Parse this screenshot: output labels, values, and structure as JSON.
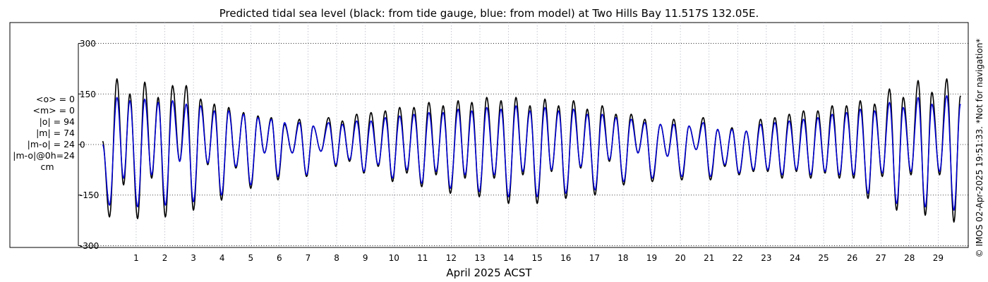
{
  "title": "Predicted tidal sea level (black: from tide gauge, blue: from model) at Two Hills Bay 11.517S 132.05E.",
  "stats_lines": [
    "<o> = 0",
    "<m> = 0",
    "|o| = 94",
    "|m| = 74",
    "|m-o| = 24",
    "|m-o|@0h=24"
  ],
  "stats_unit": "cm",
  "credit": "© IMOS 02-Apr-2025 19:51:33. *Not for navigation*",
  "chart_data": {
    "type": "line",
    "title": "Predicted tidal sea level (black: from tide gauge, blue: from model) at Two Hills Bay 11.517S 132.05E.",
    "xlabel": "April 2025 ACST",
    "ylabel": "",
    "x_unit": "day of April 2025",
    "xlim": [
      -0.6,
      30
    ],
    "ylim": [
      -320,
      320
    ],
    "yticks": [
      -300,
      -150,
      0,
      150,
      300
    ],
    "xticks": [
      1,
      2,
      3,
      4,
      5,
      6,
      7,
      8,
      9,
      10,
      11,
      12,
      13,
      14,
      15,
      16,
      17,
      18,
      19,
      20,
      21,
      22,
      23,
      24,
      25,
      26,
      27,
      28,
      29
    ],
    "grid": true,
    "legend": "none",
    "series": [
      {
        "color": "#000000",
        "high_tide_days": [
          -0.17,
          0.33,
          0.78,
          1.3,
          1.77,
          2.27,
          2.75,
          3.25,
          3.73,
          4.23,
          4.75,
          5.25,
          5.72,
          6.18,
          6.7,
          7.18,
          7.72,
          8.2,
          8.7,
          9.2,
          9.7,
          10.2,
          10.7,
          11.22,
          11.72,
          12.24,
          12.72,
          13.24,
          13.74,
          14.26,
          14.75,
          15.27,
          15.75,
          16.27,
          16.75,
          17.27,
          17.75,
          18.28,
          18.76,
          19.3,
          19.77,
          20.3,
          20.8,
          21.3,
          21.8,
          22.3,
          22.8,
          23.3,
          23.8,
          24.3,
          24.8,
          25.3,
          25.8,
          26.28,
          26.78,
          27.3,
          27.78,
          28.3,
          28.78,
          29.3,
          29.78
        ],
        "high_tide_values": [
          10,
          195,
          150,
          185,
          140,
          175,
          175,
          135,
          120,
          110,
          95,
          85,
          80,
          60,
          75,
          55,
          80,
          70,
          90,
          95,
          100,
          110,
          110,
          125,
          115,
          130,
          125,
          140,
          130,
          140,
          115,
          135,
          115,
          130,
          105,
          115,
          90,
          90,
          75,
          60,
          75,
          55,
          80,
          45,
          50,
          40,
          75,
          80,
          90,
          100,
          100,
          115,
          115,
          130,
          120,
          165,
          140,
          190,
          155,
          195,
          145
        ],
        "low_tide_days": [
          0.07,
          0.56,
          1.05,
          1.54,
          2.02,
          2.52,
          3.0,
          3.5,
          3.98,
          4.48,
          5.0,
          5.48,
          5.95,
          6.45,
          6.95,
          7.45,
          7.97,
          8.45,
          8.95,
          9.45,
          9.95,
          10.45,
          10.97,
          11.47,
          11.97,
          12.48,
          12.98,
          13.5,
          14.0,
          14.5,
          15.0,
          15.5,
          16.0,
          16.52,
          17.02,
          17.52,
          18.02,
          18.52,
          19.02,
          19.55,
          20.05,
          20.55,
          21.05,
          21.55,
          22.05,
          22.55,
          23.05,
          23.55,
          24.05,
          24.55,
          25.05,
          25.55,
          26.05,
          26.55,
          27.05,
          27.55,
          28.05,
          28.55,
          29.05,
          29.55
        ],
        "low_tide_values": [
          -215,
          -120,
          -220,
          -100,
          -215,
          -50,
          -195,
          -60,
          -165,
          -70,
          -130,
          -25,
          -105,
          -25,
          -95,
          -20,
          -65,
          -50,
          -85,
          -65,
          -110,
          -85,
          -125,
          -90,
          -145,
          -100,
          -155,
          -100,
          -175,
          -90,
          -175,
          -80,
          -160,
          -70,
          -150,
          -50,
          -120,
          -25,
          -110,
          -35,
          -105,
          -15,
          -105,
          -65,
          -90,
          -80,
          -80,
          -100,
          -80,
          -100,
          -85,
          -100,
          -100,
          -160,
          -95,
          -195,
          -90,
          -210,
          -90,
          -230
        ]
      },
      {
        "color": "#0000d8",
        "high_tide_days": [
          -0.17,
          0.33,
          0.78,
          1.3,
          1.77,
          2.27,
          2.75,
          3.25,
          3.73,
          4.23,
          4.75,
          5.25,
          5.72,
          6.18,
          6.7,
          7.18,
          7.72,
          8.2,
          8.7,
          9.2,
          9.7,
          10.2,
          10.7,
          11.22,
          11.72,
          12.24,
          12.72,
          13.24,
          13.74,
          14.26,
          14.75,
          15.27,
          15.75,
          16.27,
          16.75,
          17.27,
          17.75,
          18.28,
          18.76,
          19.3,
          19.77,
          20.3,
          20.8,
          21.3,
          21.8,
          22.3,
          22.8,
          23.3,
          23.8,
          24.3,
          24.8,
          25.3,
          25.8,
          26.28,
          26.78,
          27.3,
          27.78,
          28.3,
          28.78,
          29.3,
          29.78
        ],
        "high_tide_values": [
          0,
          140,
          130,
          135,
          125,
          130,
          120,
          115,
          100,
          100,
          90,
          80,
          75,
          65,
          65,
          55,
          65,
          60,
          70,
          70,
          80,
          85,
          90,
          95,
          95,
          105,
          100,
          110,
          105,
          115,
          100,
          110,
          100,
          105,
          90,
          90,
          80,
          75,
          65,
          60,
          60,
          55,
          65,
          45,
          45,
          40,
          60,
          65,
          70,
          75,
          80,
          90,
          95,
          105,
          100,
          125,
          110,
          140,
          120,
          145,
          120
        ],
        "low_tide_days": [
          0.07,
          0.56,
          1.05,
          1.54,
          2.02,
          2.52,
          3.0,
          3.5,
          3.98,
          4.48,
          5.0,
          5.48,
          5.95,
          6.45,
          6.95,
          7.45,
          7.97,
          8.45,
          8.95,
          9.45,
          9.95,
          10.45,
          10.97,
          11.47,
          11.97,
          12.48,
          12.98,
          13.5,
          14.0,
          14.5,
          15.0,
          15.5,
          16.0,
          16.52,
          17.02,
          17.52,
          18.02,
          18.52,
          19.02,
          19.55,
          20.05,
          20.55,
          21.05,
          21.55,
          22.05,
          22.55,
          23.05,
          23.55,
          24.05,
          24.55,
          25.05,
          25.55,
          26.05,
          26.55,
          27.05,
          27.55,
          28.05,
          28.55,
          29.05,
          29.55
        ],
        "low_tide_values": [
          -180,
          -100,
          -185,
          -90,
          -180,
          -50,
          -170,
          -55,
          -150,
          -65,
          -120,
          -25,
          -95,
          -25,
          -90,
          -20,
          -60,
          -45,
          -80,
          -60,
          -100,
          -75,
          -115,
          -80,
          -130,
          -90,
          -140,
          -90,
          -155,
          -80,
          -155,
          -75,
          -145,
          -65,
          -135,
          -45,
          -110,
          -25,
          -100,
          -35,
          -95,
          -15,
          -95,
          -60,
          -85,
          -75,
          -75,
          -90,
          -75,
          -90,
          -80,
          -90,
          -90,
          -145,
          -85,
          -175,
          -80,
          -185,
          -80,
          -195
        ]
      }
    ]
  }
}
